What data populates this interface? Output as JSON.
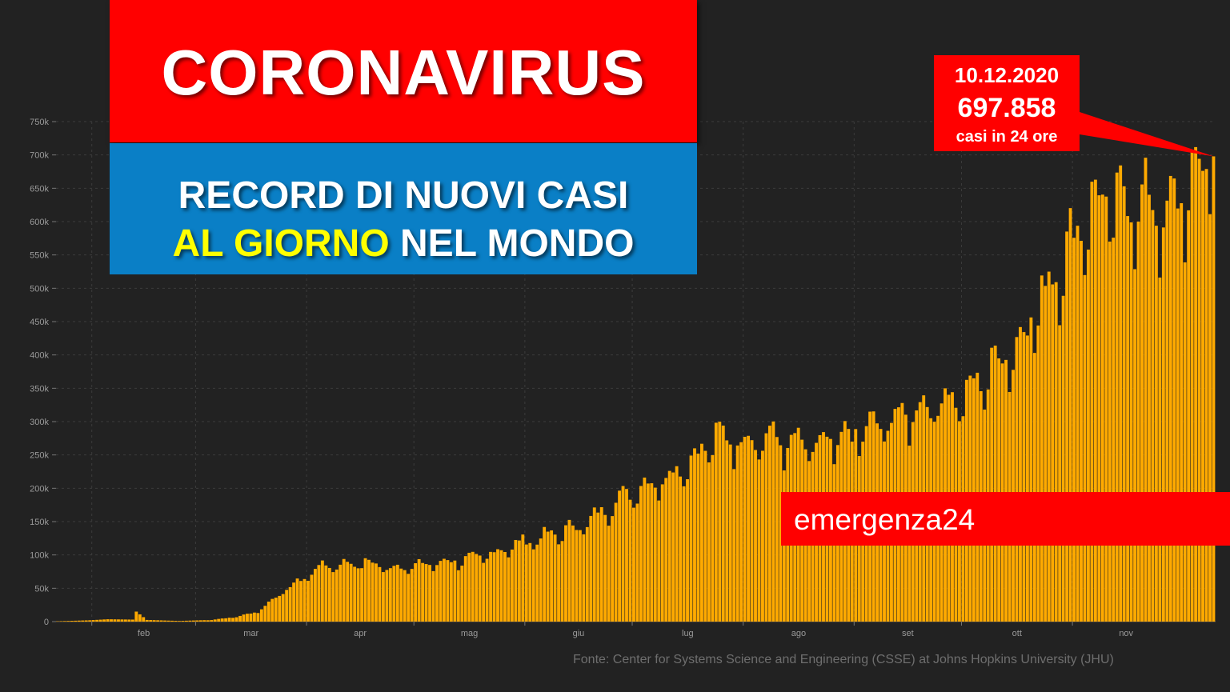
{
  "header": {
    "title": "CORONAVIRUS",
    "subtitle_line1": "RECORD DI NUOVI CASI",
    "subtitle_line2_part1": "AL",
    "subtitle_line2_highlight": "GIORNO",
    "subtitle_line2_part2": "NEL MONDO",
    "title_bg": "#ff0000",
    "subtitle_bg": "#0a7fc6",
    "highlight_color": "#ffff00"
  },
  "callout": {
    "date": "10.12.2020",
    "value": "697.858",
    "label": "casi in 24 ore"
  },
  "brand": {
    "text": "emergenza24"
  },
  "source": {
    "text": "Fonte: Center for Systems Science and Engineering (CSSE) at Johns Hopkins University (JHU)"
  },
  "chart_data": {
    "type": "bar",
    "bar_color": "#ffaa00",
    "x_start": "2020-01-22",
    "x_end": "2020-12-10",
    "ylim": [
      0,
      750000
    ],
    "y_tick_labels": [
      "0",
      "50k",
      "100k",
      "150k",
      "200k",
      "250k",
      "300k",
      "350k",
      "400k",
      "450k",
      "500k",
      "550k",
      "600k",
      "650k",
      "700k",
      "750k"
    ],
    "x_tick_labels": [
      "feb",
      "mar",
      "apr",
      "mag",
      "giu",
      "lug",
      "ago",
      "set",
      "ott",
      "nov"
    ],
    "grid": true,
    "anchors": [
      [
        "2020-01-22",
        500
      ],
      [
        "2020-01-31",
        2000
      ],
      [
        "2020-02-05",
        3500
      ],
      [
        "2020-02-12",
        3000
      ],
      [
        "2020-02-13",
        15000
      ],
      [
        "2020-02-16",
        2500
      ],
      [
        "2020-02-25",
        1000
      ],
      [
        "2020-03-05",
        2500
      ],
      [
        "2020-03-12",
        7000
      ],
      [
        "2020-03-18",
        15000
      ],
      [
        "2020-03-25",
        45000
      ],
      [
        "2020-03-31",
        65000
      ],
      [
        "2020-04-04",
        82000
      ],
      [
        "2020-04-10",
        85000
      ],
      [
        "2020-04-17",
        88000
      ],
      [
        "2020-04-24",
        80000
      ],
      [
        "2020-05-01",
        83000
      ],
      [
        "2020-05-08",
        88000
      ],
      [
        "2020-05-15",
        92000
      ],
      [
        "2020-05-22",
        100000
      ],
      [
        "2020-05-29",
        115000
      ],
      [
        "2020-06-05",
        125000
      ],
      [
        "2020-06-12",
        135000
      ],
      [
        "2020-06-19",
        150000
      ],
      [
        "2020-06-26",
        180000
      ],
      [
        "2020-07-03",
        200000
      ],
      [
        "2020-07-10",
        215000
      ],
      [
        "2020-07-17",
        240000
      ],
      [
        "2020-07-24",
        275000
      ],
      [
        "2020-07-31",
        270000
      ],
      [
        "2020-08-07",
        275000
      ],
      [
        "2020-08-14",
        265000
      ],
      [
        "2020-08-21",
        260000
      ],
      [
        "2020-08-28",
        270000
      ],
      [
        "2020-09-04",
        285000
      ],
      [
        "2020-09-11",
        300000
      ],
      [
        "2020-09-18",
        315000
      ],
      [
        "2020-09-25",
        330000
      ],
      [
        "2020-10-02",
        335000
      ],
      [
        "2020-10-09",
        380000
      ],
      [
        "2020-10-16",
        410000
      ],
      [
        "2020-10-23",
        480000
      ],
      [
        "2020-10-30",
        550000
      ],
      [
        "2020-11-06",
        620000
      ],
      [
        "2020-11-13",
        620000
      ],
      [
        "2020-11-20",
        625000
      ],
      [
        "2020-11-27",
        600000
      ],
      [
        "2020-12-04",
        650000
      ],
      [
        "2020-12-10",
        697858
      ]
    ]
  }
}
